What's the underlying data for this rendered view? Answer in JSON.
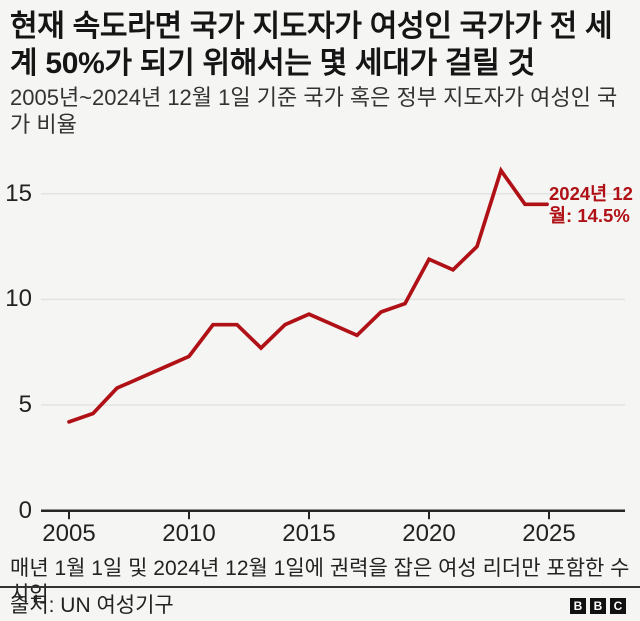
{
  "title": "현재 속도라면 국가 지도자가 여성인 국가가 전 세계 50%가 되기 위해서는 몇 세대가 걸릴 것",
  "subtitle": "2005년~2024년 12월 1일 기준 국가 혹은 정부 지도자가 여성인 국가 비율",
  "annotation": {
    "full": "2024년 12월: 14.5%",
    "line1": "2024년 12",
    "line2": "월: 14.5%",
    "value": 14.5
  },
  "footnote": "매년 1월 1일 및 2024년 12월 1일에 권력을 잡은 여성 리더만 포함한 수치임",
  "source": "출처: UN 여성기구",
  "bbc_logo_letters": [
    "B",
    "B",
    "C"
  ],
  "colors": {
    "line": "#b01116",
    "annotation_text": "#b01116",
    "background": "#f5f5f3",
    "gridline": "#e3e3e1",
    "axis": "#262626",
    "title_text": "#151515",
    "body_text": "#222222"
  },
  "chart_data": {
    "type": "line",
    "title": "현재 속도라면 국가 지도자가 여성인 국가가 전 세계 50%가 되기 위해서는 몇 세대가 걸릴 것",
    "subtitle": "2005년~2024년 12월 1일 기준 국가 혹은 정부 지도자가 여성인 국가 비율",
    "x": [
      2005,
      2006,
      2007,
      2008,
      2009,
      2010,
      2011,
      2012,
      2013,
      2014,
      2015,
      2016,
      2017,
      2018,
      2019,
      2020,
      2021,
      2022,
      2023,
      2024,
      2024.92
    ],
    "values": [
      4.2,
      4.6,
      5.8,
      6.3,
      6.8,
      7.3,
      8.8,
      8.8,
      7.7,
      8.8,
      9.3,
      8.8,
      8.3,
      9.4,
      9.8,
      11.9,
      11.4,
      12.5,
      16.1,
      14.5,
      14.5
    ],
    "unit": "%",
    "last_point_label": "2024년 12월: 14.5%",
    "x_ticks": [
      "2005",
      "2010",
      "2015",
      "2020",
      "2025"
    ],
    "x_tick_years": [
      2005,
      2010,
      2015,
      2020,
      2025
    ],
    "y_ticks": [
      "0",
      "5",
      "10",
      "15"
    ],
    "y_tick_values": [
      0,
      5,
      10,
      15
    ],
    "xlim": [
      2005,
      2028
    ],
    "ylim": [
      0,
      17
    ],
    "grid": "horizontal",
    "legend": "none"
  }
}
